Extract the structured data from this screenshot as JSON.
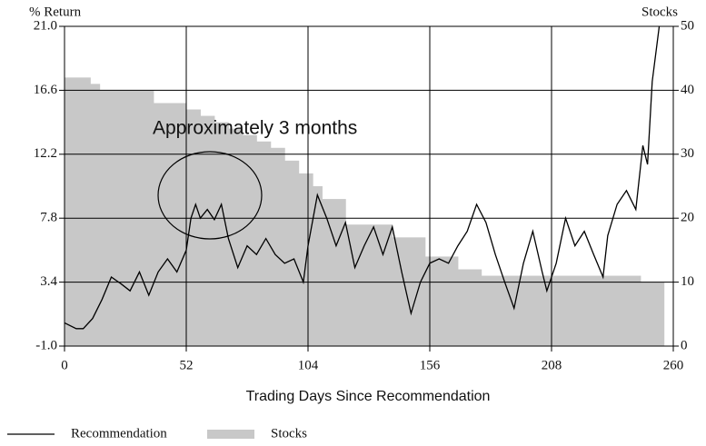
{
  "chart_data": {
    "type": "line",
    "y_label": "% Return",
    "y2_label": "Stocks",
    "x_label": "Trading Days Since Recommendation",
    "annotation": "Approximately 3 months",
    "xlim": [
      0,
      260
    ],
    "xticks": [
      0,
      52,
      104,
      156,
      208,
      260
    ],
    "ylim": [
      -1,
      21
    ],
    "yticks": [
      {
        "value": -1,
        "label": "-1.0"
      },
      3.4,
      7.8,
      12.2,
      16.6,
      {
        "value": 21,
        "label": "21.0"
      }
    ],
    "y2lim": [
      0,
      50
    ],
    "y2ticks": [
      0,
      10,
      20,
      30,
      40,
      50
    ],
    "grid": true,
    "series": [
      {
        "name": "Recommendation",
        "color": "#000000",
        "type": "line",
        "x": [
          0,
          5,
          8,
          12,
          16,
          20,
          24,
          28,
          32,
          36,
          40,
          44,
          48,
          52,
          54,
          56,
          58,
          61,
          64,
          67,
          70,
          74,
          78,
          82,
          86,
          90,
          94,
          98,
          102,
          104,
          108,
          112,
          116,
          120,
          124,
          128,
          132,
          136,
          140,
          144,
          148,
          152,
          156,
          160,
          164,
          168,
          172,
          176,
          180,
          184,
          188,
          192,
          196,
          200,
          204,
          206,
          210,
          214,
          218,
          222,
          226,
          230,
          232,
          236,
          240,
          244,
          247,
          249,
          251,
          254
        ],
        "values": [
          0.6,
          0.2,
          0.2,
          0.9,
          2.2,
          3.75,
          3.3,
          2.8,
          4.1,
          2.5,
          4.1,
          5.0,
          4.1,
          5.6,
          7.8,
          8.75,
          7.8,
          8.4,
          7.7,
          8.75,
          6.4,
          4.4,
          5.9,
          5.3,
          6.4,
          5.3,
          4.7,
          5.0,
          3.4,
          5.9,
          9.4,
          7.8,
          5.9,
          7.5,
          4.4,
          5.9,
          7.2,
          5.3,
          7.2,
          4.1,
          1.25,
          3.4,
          4.7,
          5.0,
          4.7,
          5.9,
          6.9,
          8.75,
          7.5,
          5.3,
          3.4,
          1.6,
          4.7,
          6.9,
          4.1,
          2.8,
          4.7,
          7.8,
          5.9,
          6.9,
          5.3,
          3.75,
          6.6,
          8.75,
          9.7,
          8.4,
          12.8,
          11.5,
          17.2,
          21.0
        ]
      },
      {
        "name": "Stocks",
        "color": "#c8c8c8",
        "type": "area",
        "axis": "y2",
        "bins": [
          0,
          11,
          15,
          38,
          52,
          58,
          64,
          70,
          76,
          82,
          88,
          94,
          100,
          106,
          110,
          120,
          140,
          154,
          168,
          178,
          246,
          256
        ],
        "values": [
          42,
          41,
          40,
          38,
          37,
          36,
          35,
          34,
          33,
          32,
          31,
          29,
          27,
          25,
          23,
          19,
          17,
          14,
          12,
          11,
          10
        ]
      }
    ]
  }
}
